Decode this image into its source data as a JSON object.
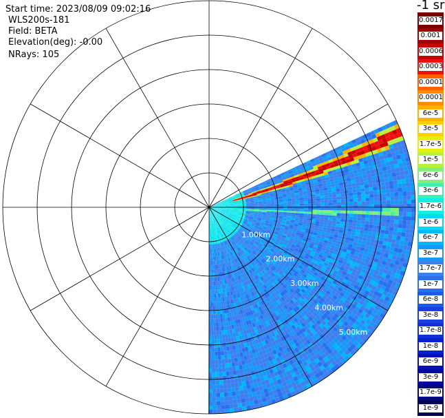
{
  "info": {
    "start_time": "Start time: 2023/08/09 09:02:16",
    "site": "WLS200s-181",
    "field": "Field: BETA",
    "elevation": "Elevation(deg): -0.00",
    "nrays": "NRays: 105"
  },
  "colorbar": {
    "unit_label": "-1 sr",
    "ticks": [
      "0.0017",
      "0.001",
      "0.0006",
      "0.0003",
      "0.00017",
      "0.0001",
      "6e-5",
      "3e-5",
      "1.7e-5",
      "1e-5",
      "6e-6",
      "3e-6",
      "1.7e-6",
      "1e-6",
      "6e-7",
      "3e-7",
      "1.7e-7",
      "1e-7",
      "6e-8",
      "3e-8",
      "1.7e-8",
      "1e-8",
      "6e-9",
      "3e-9",
      "1.7e-9",
      "1e-9"
    ],
    "colors": [
      "#7a0000",
      "#a00000",
      "#c80000",
      "#ee1010",
      "#ff6000",
      "#ff8c00",
      "#ffb000",
      "#ffd000",
      "#e8ee10",
      "#b8f040",
      "#80f078",
      "#40f0b0",
      "#10f0e0",
      "#00d8f8",
      "#00b8f8",
      "#1898f8",
      "#3c80f0",
      "#2870f0",
      "#2058e8",
      "#1840e0",
      "#1030d8",
      "#0820d0",
      "#0610b8",
      "#0408a0",
      "#020680",
      "#010450"
    ]
  },
  "chart_data": {
    "type": "heatmap",
    "projection": "polar PPI scan (plan view)",
    "field": "BETA",
    "range_ring_labels": [
      "1.00km",
      "2.00km",
      "3.00km",
      "4.00km",
      "5.00km"
    ],
    "range_rings_km": [
      1,
      2,
      3,
      4,
      5,
      6
    ],
    "azimuth_spokes_deg": [
      0,
      30,
      60,
      90,
      120,
      150,
      180,
      210,
      240,
      270,
      300,
      330
    ],
    "scan_sector_deg": [
      65,
      180
    ],
    "max_range_km": 6,
    "features": [
      {
        "description": "high backscatter plume",
        "azimuth_deg": [
          67,
          79
        ],
        "range_km": [
          0.6,
          6.0
        ],
        "beta": "3e-4 to 1e-3"
      },
      {
        "description": "moderate backscatter line",
        "azimuth_deg": [
          85,
          97
        ],
        "range_km": [
          0.5,
          5.5
        ],
        "beta": "1e-6 to 6e-6"
      },
      {
        "description": "elevated near-field backscatter",
        "range_km": [
          0,
          1.0
        ],
        "beta": "1e-6 to 3e-6"
      },
      {
        "description": "background",
        "range_km": [
          1.0,
          6.0
        ],
        "beta": "1e-8 to 3e-7"
      }
    ]
  }
}
